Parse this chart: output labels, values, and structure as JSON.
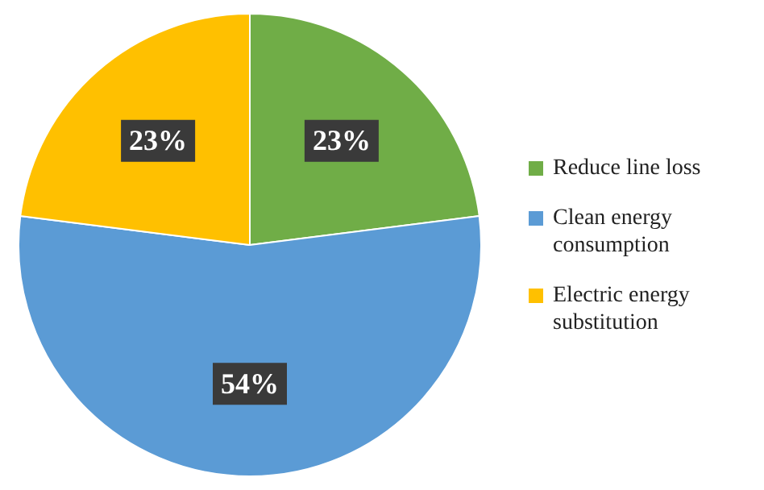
{
  "chart_data": {
    "type": "pie",
    "categories": [
      "Reduce line loss",
      "Clean energy consumption",
      "Electric energy substitution"
    ],
    "values": [
      23,
      54,
      23
    ],
    "colors": [
      "#70ad47",
      "#5b9bd5",
      "#ffc000"
    ],
    "value_labels": [
      "23%",
      "54%",
      "23%"
    ],
    "legend": "right"
  }
}
